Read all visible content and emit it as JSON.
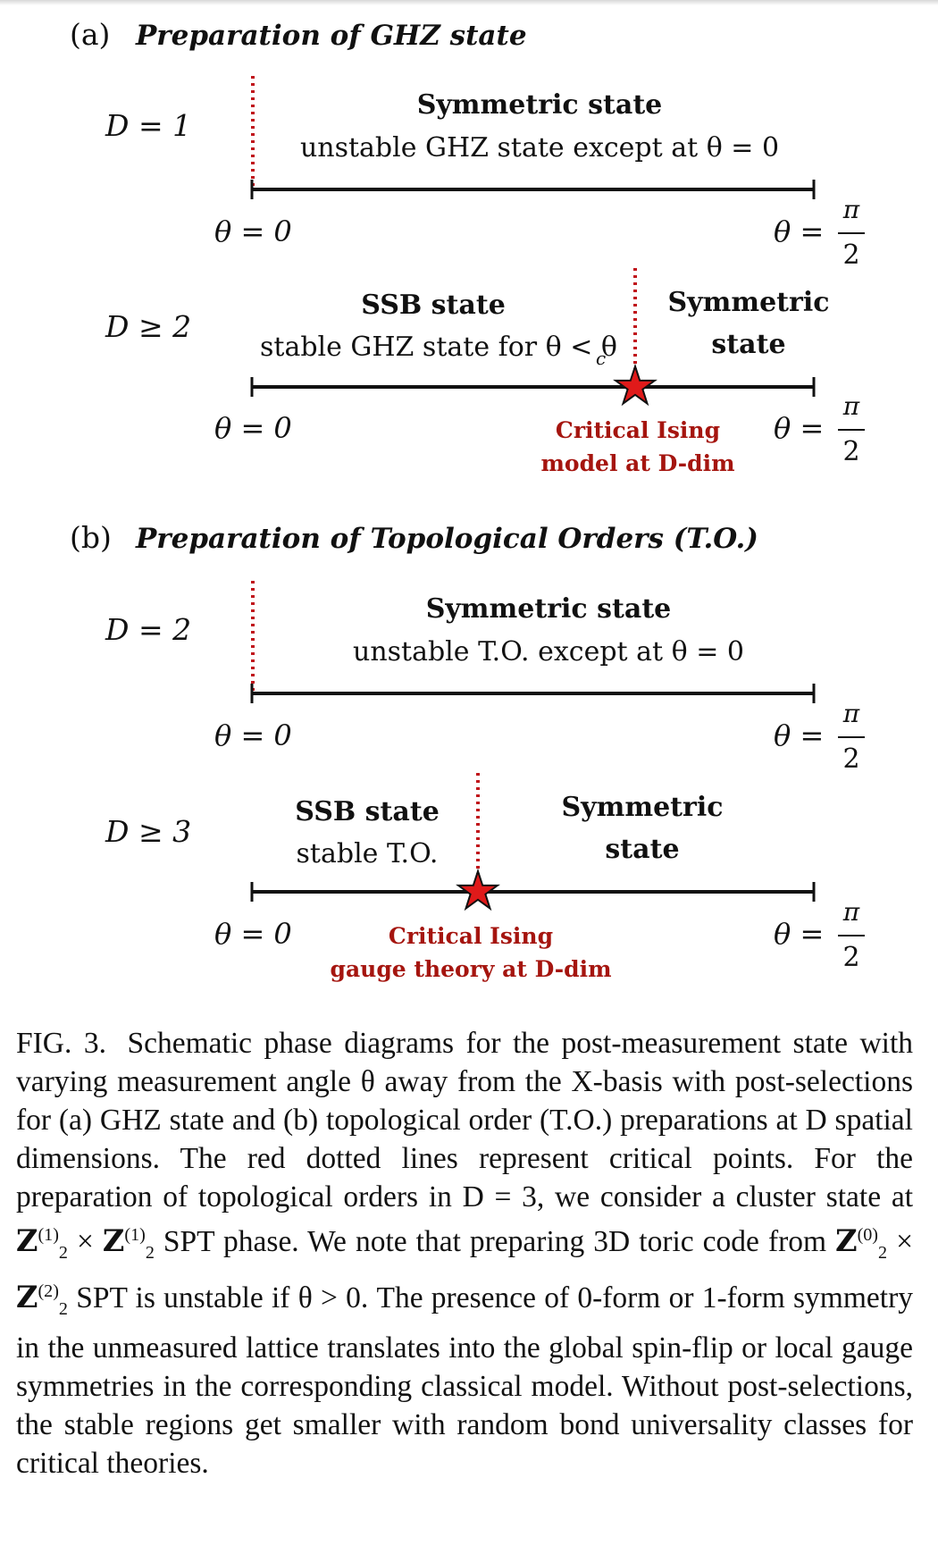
{
  "panel_a": {
    "title_prefix": "(a)",
    "title": "Preparation of GHZ state",
    "rows": [
      {
        "dim": "D = 1",
        "left_label": "",
        "left_sub": "",
        "right_label": "Symmetric state",
        "right_sub": "unstable GHZ state except at θ = 0",
        "theta_left": "θ = 0",
        "theta_right": "θ =",
        "pi": "π",
        "two": "2",
        "critical": ""
      },
      {
        "dim": "D ≥ 2",
        "left_label": "SSB state",
        "left_sub": "stable GHZ state for θ < θ",
        "left_sub_index": "c",
        "right_label": "Symmetric",
        "right_sub": "state",
        "theta_left": "θ = 0",
        "theta_right": "θ =",
        "pi": "π",
        "two": "2",
        "critical_line1": "Critical Ising",
        "critical_line2": "model at D-dim"
      }
    ]
  },
  "panel_b": {
    "title_prefix": "(b)",
    "title": "Preparation of Topological Orders (T.O.)",
    "rows": [
      {
        "dim": "D = 2",
        "right_label": "Symmetric state",
        "right_sub": "unstable T.O. except at θ = 0",
        "theta_left": "θ = 0",
        "theta_right": "θ =",
        "pi": "π",
        "two": "2"
      },
      {
        "dim": "D ≥ 3",
        "left_label": "SSB state",
        "left_sub": "stable T.O.",
        "right_label": "Symmetric",
        "right_sub": "state",
        "theta_left": "θ = 0",
        "theta_right": "θ =",
        "pi": "π",
        "two": "2",
        "critical_line1": "Critical Ising",
        "critical_line2": "gauge theory at D-dim"
      }
    ]
  },
  "caption": {
    "label": "FIG. 3.",
    "part1": "Schematic phase diagrams for the post-measurement state with varying measurement angle θ away from the X-basis with post-selections for (a) GHZ state and (b) topological order (T.O.) preparations at D spatial dimensions. The red dotted lines represent critical points. For the preparation of topological orders in D = 3, we consider a cluster state at",
    "z1": "Z",
    "z1_sup": "(1)",
    "z1_sub": "2",
    "times": " × ",
    "z2": "Z",
    "z2_sup": "(1)",
    "z2_sub": "2",
    "part2": " SPT phase. We note that preparing 3D toric code from ",
    "z3": "Z",
    "z3_sup": "(0)",
    "z3_sub": "2",
    "times2": " × ",
    "z4": "Z",
    "z4_sup": "(2)",
    "z4_sub": "2",
    "part3": " SPT is unstable if θ > 0. The presence of 0-form or 1-form symmetry in the unmeasured lattice translates into the global spin-flip or local gauge symmetries in the corresponding classical model. Without post-selections, the stable regions get smaller with random bond universality classes for critical theories."
  },
  "colors": {
    "critical": "#c0141a",
    "critical_text": "#a5150f",
    "axis": "#111111"
  }
}
